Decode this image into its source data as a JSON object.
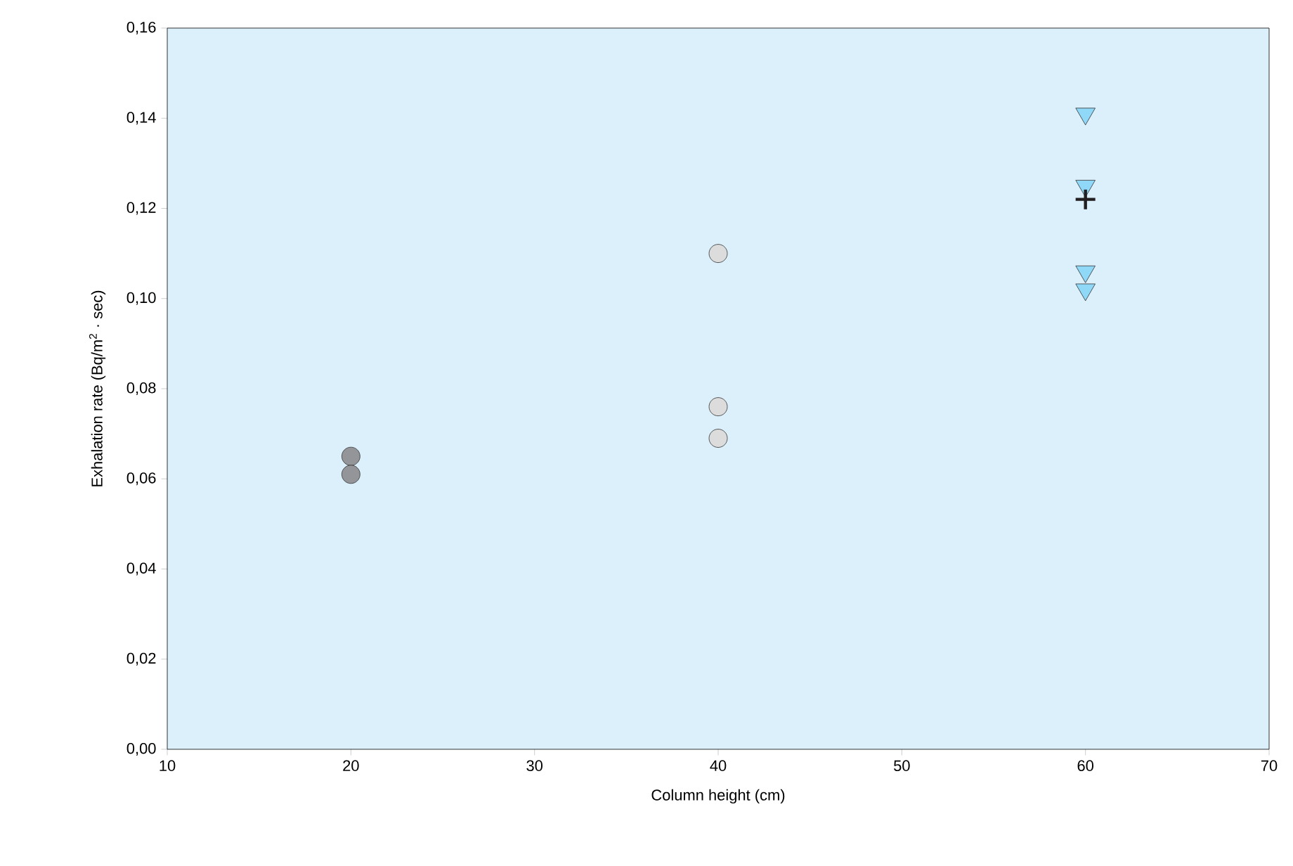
{
  "chart_data": {
    "type": "scatter",
    "xlabel": "Column height (cm)",
    "ylabel": "Exhalation rate (Bq/m$^{2}$ · sec)",
    "xlim": [
      10,
      70
    ],
    "xticks": [
      10,
      20,
      30,
      40,
      50,
      60,
      70
    ],
    "ylim": [
      0,
      0.16
    ],
    "yticks": [
      {
        "value": 0,
        "label": "0,00"
      },
      {
        "value": 0.02,
        "label": "0,02"
      },
      {
        "value": 0.04,
        "label": "0,04"
      },
      {
        "value": 0.06,
        "label": "0,06"
      },
      {
        "value": 0.08,
        "label": "0,08"
      },
      {
        "value": 0.1,
        "label": "0,10"
      },
      {
        "value": 0.12,
        "label": "0,12"
      },
      {
        "value": 0.14,
        "label": "0,14"
      },
      {
        "value": 0.16,
        "label": "0,16"
      }
    ],
    "grid": false,
    "series": [
      {
        "color": "#939598",
        "marker": "circle",
        "x": [
          20,
          20
        ],
        "values": [
          0.065,
          0.061
        ]
      },
      {
        "color": "#dcdcdc",
        "marker": "circle",
        "x": [
          40,
          40,
          40
        ],
        "values": [
          0.11,
          0.076,
          0.069
        ]
      },
      {
        "color": "#8fd8f8",
        "marker": "triangle",
        "x": [
          60,
          60,
          60,
          60
        ],
        "values": [
          0.141,
          0.125,
          0.106,
          0.102
        ]
      },
      {
        "color": "#231f20",
        "marker": "cross",
        "x": [
          60
        ],
        "values": [
          0.122
        ]
      }
    ]
  }
}
